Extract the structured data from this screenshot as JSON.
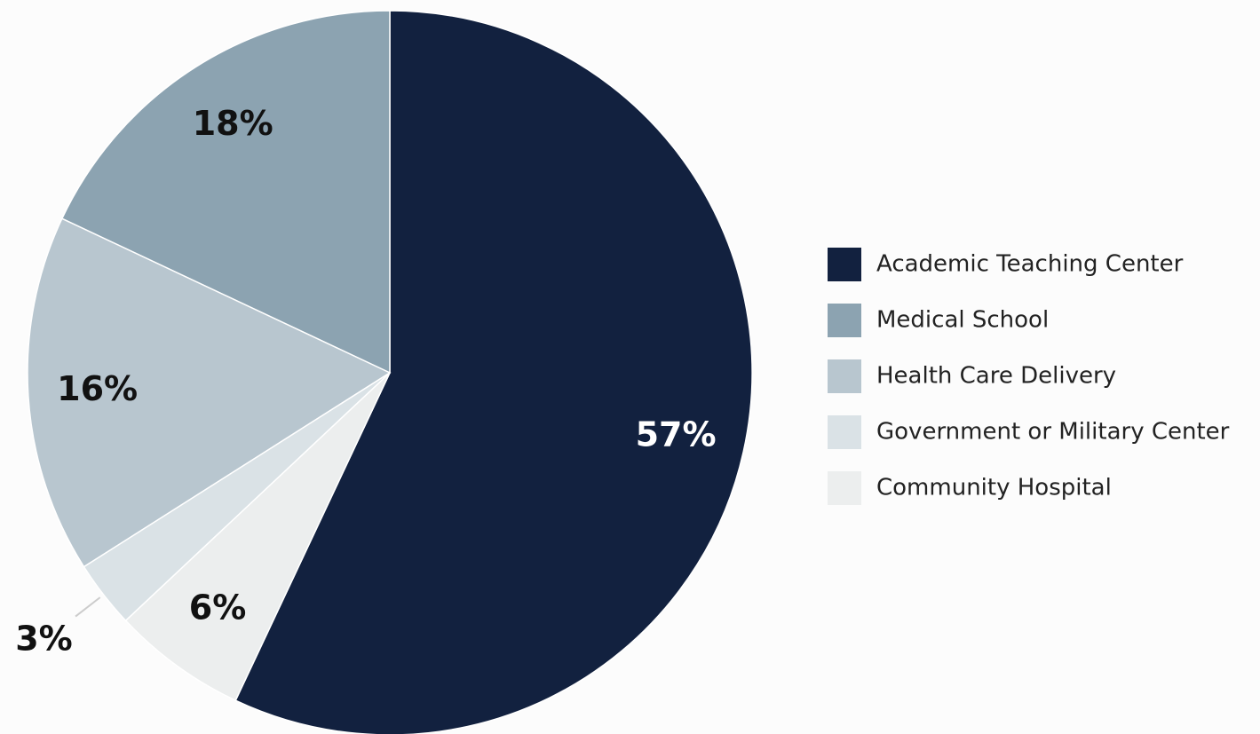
{
  "chart_data": {
    "type": "pie",
    "categories": [
      "Academic Teaching Center",
      "Medical School",
      "Health Care Delivery",
      "Government or Military Center",
      "Community Hospital"
    ],
    "values": [
      57,
      18,
      16,
      3,
      6
    ],
    "value_labels": [
      "57%",
      "18%",
      "16%",
      "3%",
      "6%"
    ],
    "colors": [
      "#12213f",
      "#8ca3b1",
      "#b8c6cf",
      "#dae2e6",
      "#eceeee"
    ],
    "legend": "right"
  }
}
